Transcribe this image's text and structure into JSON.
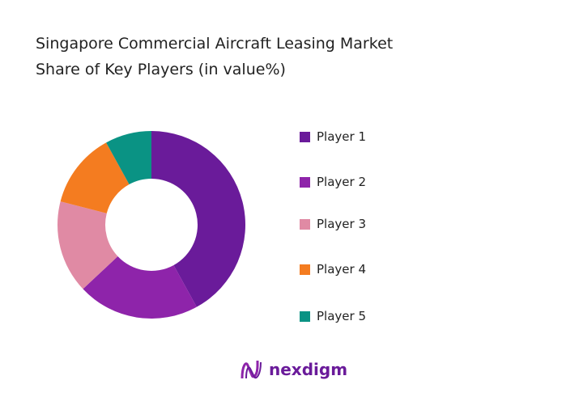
{
  "chart_data": {
    "type": "pie",
    "donut": true,
    "title": "Singapore Commercial Aircraft Leasing Market\nShare of Key Players (in value%)",
    "title_lines": [
      "Singapore Commercial Aircraft Leasing Market",
      "Share of Key Players (in value%)"
    ],
    "categories": [
      "Player 1",
      "Player 2",
      "Player 3",
      "Player 4",
      "Player 5"
    ],
    "values": [
      42,
      21,
      16,
      13,
      8
    ],
    "colors": [
      "#6a1b9a",
      "#8e24aa",
      "#e08aa4",
      "#f47c20",
      "#0a9384"
    ],
    "legend_position": "right"
  },
  "logo": {
    "text": "nexdigm"
  }
}
